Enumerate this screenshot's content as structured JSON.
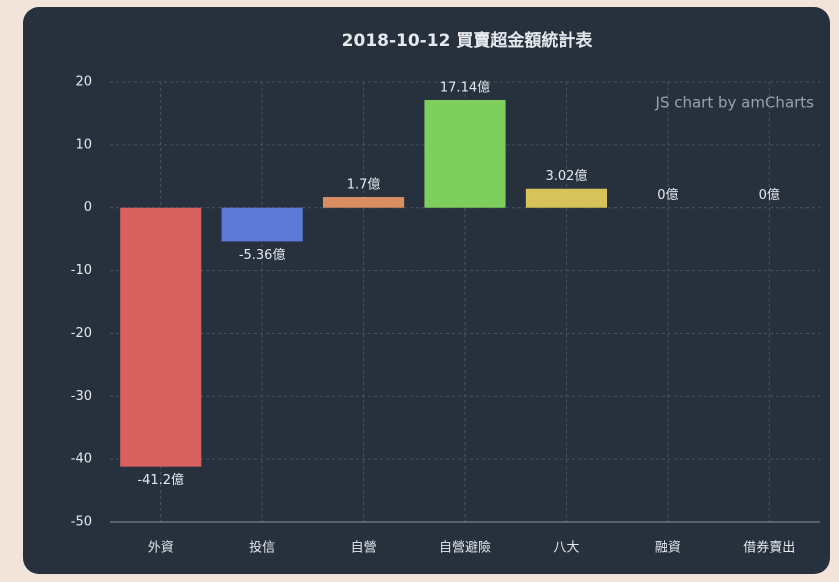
{
  "chart_data": {
    "type": "bar",
    "title": "2018-10-12 買賣超金額統計表",
    "credit": "JS chart by amCharts",
    "categories": [
      "外資",
      "投信",
      "自營",
      "自營避險",
      "八大",
      "融資",
      "借券賣出"
    ],
    "values": [
      -41.2,
      -5.36,
      1.7,
      17.14,
      3.02,
      0,
      0
    ],
    "value_labels": [
      "-41.2億",
      "-5.36億",
      "1.7億",
      "17.14億",
      "3.02億",
      "0億",
      "0億"
    ],
    "colors": [
      "#d6605e",
      "#5d7ad8",
      "#d98f62",
      "#7ecf5d",
      "#d6c45a",
      "#b36bd1",
      "#5bc2c9"
    ],
    "ylim": [
      -50,
      20
    ],
    "yticks": [
      20,
      10,
      0,
      -10,
      -20,
      -30,
      -40,
      -50
    ],
    "grid": true
  }
}
